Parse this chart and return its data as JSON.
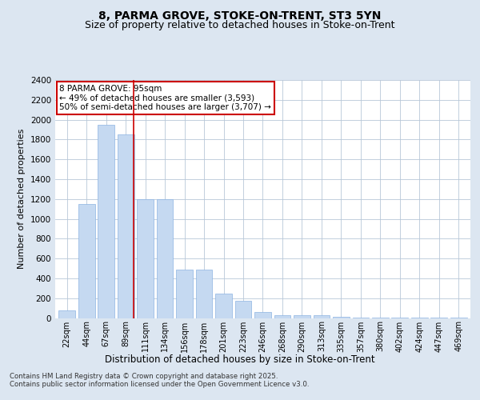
{
  "title_line1": "8, PARMA GROVE, STOKE-ON-TRENT, ST3 5YN",
  "title_line2": "Size of property relative to detached houses in Stoke-on-Trent",
  "xlabel": "Distribution of detached houses by size in Stoke-on-Trent",
  "ylabel": "Number of detached properties",
  "annotation_title": "8 PARMA GROVE: 95sqm",
  "annotation_line2": "← 49% of detached houses are smaller (3,593)",
  "annotation_line3": "50% of semi-detached houses are larger (3,707) →",
  "footer_line1": "Contains HM Land Registry data © Crown copyright and database right 2025.",
  "footer_line2": "Contains public sector information licensed under the Open Government Licence v3.0.",
  "categories": [
    "22sqm",
    "44sqm",
    "67sqm",
    "89sqm",
    "111sqm",
    "134sqm",
    "156sqm",
    "178sqm",
    "201sqm",
    "223sqm",
    "246sqm",
    "268sqm",
    "290sqm",
    "313sqm",
    "335sqm",
    "357sqm",
    "380sqm",
    "402sqm",
    "424sqm",
    "447sqm",
    "469sqm"
  ],
  "values": [
    80,
    1150,
    1950,
    1850,
    1200,
    1200,
    490,
    490,
    250,
    170,
    60,
    30,
    30,
    30,
    10,
    5,
    5,
    2,
    2,
    2,
    2
  ],
  "bar_color": "#c5d9f1",
  "bar_edge_color": "#8db4e2",
  "vline_x": 3.5,
  "vline_color": "#cc0000",
  "annotation_box_color": "#cc0000",
  "ylim": [
    0,
    2400
  ],
  "yticks": [
    0,
    200,
    400,
    600,
    800,
    1000,
    1200,
    1400,
    1600,
    1800,
    2000,
    2200,
    2400
  ],
  "background_color": "#dce6f1",
  "plot_background": "#ffffff",
  "grid_color": "#b8c8d8",
  "title_fontsize": 10,
  "subtitle_fontsize": 9
}
